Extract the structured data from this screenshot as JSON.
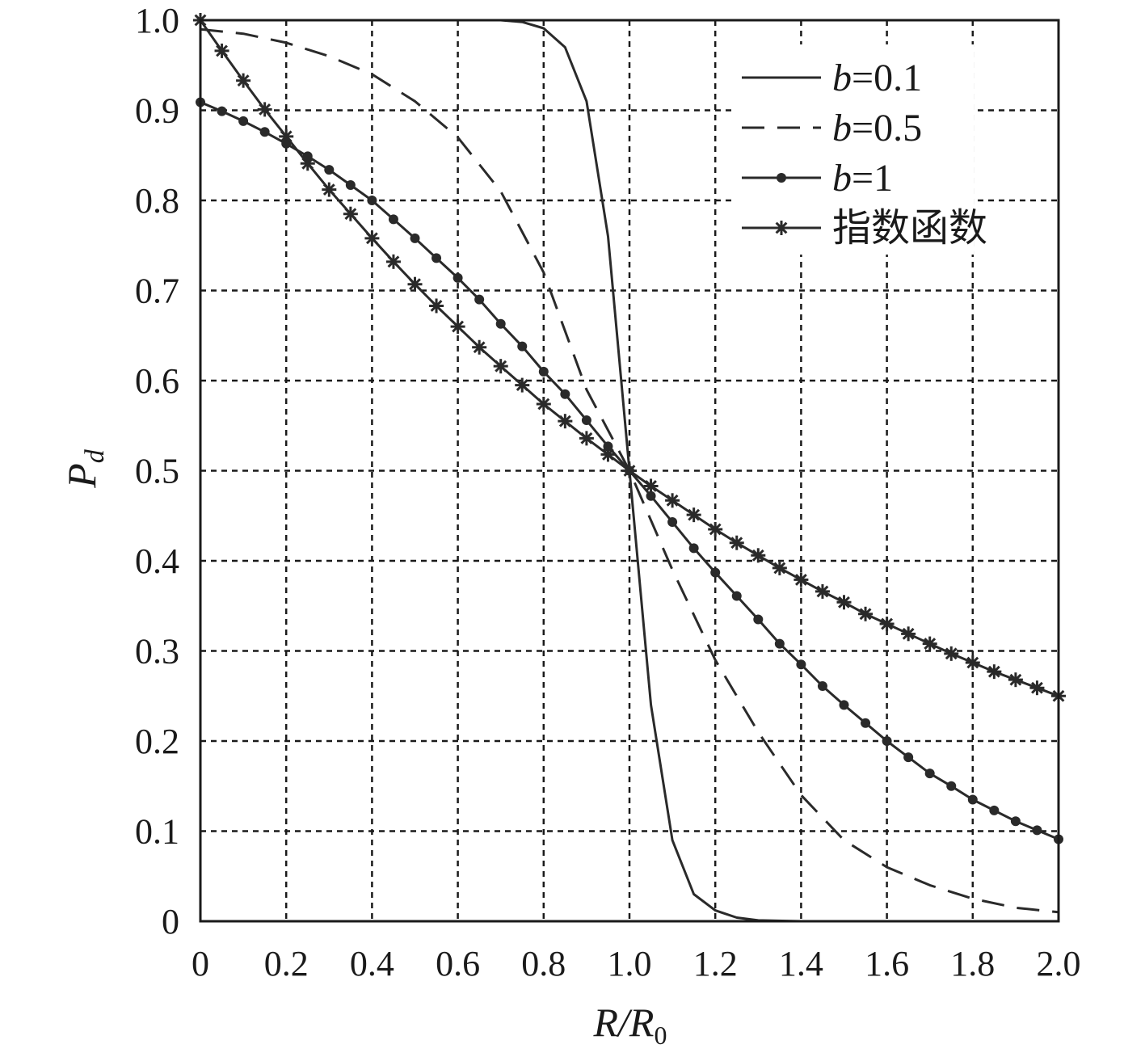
{
  "chart_data": {
    "type": "line",
    "xlabel": {
      "main": "R/R",
      "sub": "0"
    },
    "ylabel": {
      "main": "P",
      "sub": "d"
    },
    "xlim": [
      0,
      2.0
    ],
    "ylim": [
      0,
      1.0
    ],
    "x_ticks": [
      "0",
      "0.2",
      "0.4",
      "0.6",
      "0.8",
      "1.0",
      "1.2",
      "1.4",
      "1.6",
      "1.8",
      "2.0"
    ],
    "y_ticks": [
      "0",
      "0.1",
      "0.2",
      "0.3",
      "0.4",
      "0.5",
      "0.6",
      "0.7",
      "0.8",
      "0.9",
      "1.0"
    ],
    "grid": true,
    "legend_position": "top-right",
    "series": [
      {
        "name": "b=0.1",
        "legend_label": {
          "var": "b",
          "rest": "=0.1"
        },
        "style": "solid",
        "marker": "none",
        "x": [
          0,
          0.7,
          0.75,
          0.8,
          0.85,
          0.9,
          0.95,
          1.0,
          1.05,
          1.1,
          1.15,
          1.2,
          1.25,
          1.3,
          1.4,
          2.0
        ],
        "y": [
          1.0,
          1.0,
          0.998,
          0.991,
          0.97,
          0.91,
          0.76,
          0.5,
          0.24,
          0.09,
          0.03,
          0.012,
          0.004,
          0.001,
          0.0,
          0.0
        ]
      },
      {
        "name": "b=0.5",
        "legend_label": {
          "var": "b",
          "rest": "=0.5"
        },
        "style": "dashed",
        "marker": "none",
        "x": [
          0,
          0.1,
          0.2,
          0.3,
          0.4,
          0.5,
          0.6,
          0.7,
          0.8,
          0.9,
          1.0,
          1.1,
          1.2,
          1.3,
          1.4,
          1.5,
          1.6,
          1.7,
          1.8,
          1.9,
          2.0
        ],
        "y": [
          0.99,
          0.985,
          0.975,
          0.96,
          0.94,
          0.91,
          0.87,
          0.81,
          0.72,
          0.59,
          0.5,
          0.39,
          0.29,
          0.21,
          0.14,
          0.09,
          0.06,
          0.04,
          0.025,
          0.015,
          0.01
        ]
      },
      {
        "name": "b=1",
        "legend_label": {
          "var": "b",
          "rest": "=1"
        },
        "style": "solid",
        "marker": "dot",
        "x": [
          0,
          0.05,
          0.1,
          0.15,
          0.2,
          0.25,
          0.3,
          0.35,
          0.4,
          0.45,
          0.5,
          0.55,
          0.6,
          0.65,
          0.7,
          0.75,
          0.8,
          0.85,
          0.9,
          0.95,
          1.0,
          1.05,
          1.1,
          1.15,
          1.2,
          1.25,
          1.3,
          1.35,
          1.4,
          1.45,
          1.5,
          1.55,
          1.6,
          1.65,
          1.7,
          1.75,
          1.8,
          1.85,
          1.9,
          1.95,
          2.0
        ],
        "y": [
          0.909,
          0.899,
          0.888,
          0.876,
          0.863,
          0.849,
          0.834,
          0.817,
          0.8,
          0.779,
          0.758,
          0.736,
          0.714,
          0.69,
          0.663,
          0.638,
          0.61,
          0.585,
          0.556,
          0.527,
          0.5,
          0.472,
          0.443,
          0.414,
          0.387,
          0.361,
          0.335,
          0.308,
          0.285,
          0.261,
          0.24,
          0.22,
          0.2,
          0.182,
          0.164,
          0.15,
          0.135,
          0.123,
          0.111,
          0.101,
          0.091
        ]
      },
      {
        "name": "指数函数",
        "legend_label": {
          "var": "",
          "rest": "指数函数"
        },
        "style": "solid",
        "marker": "star",
        "x": [
          0,
          0.05,
          0.1,
          0.15,
          0.2,
          0.25,
          0.3,
          0.35,
          0.4,
          0.45,
          0.5,
          0.55,
          0.6,
          0.65,
          0.7,
          0.75,
          0.8,
          0.85,
          0.9,
          0.95,
          1.0,
          1.05,
          1.1,
          1.15,
          1.2,
          1.25,
          1.3,
          1.35,
          1.4,
          1.45,
          1.5,
          1.55,
          1.6,
          1.65,
          1.7,
          1.75,
          1.8,
          1.85,
          1.9,
          1.95,
          2.0
        ],
        "y": [
          1.0,
          0.966,
          0.933,
          0.901,
          0.871,
          0.841,
          0.812,
          0.785,
          0.758,
          0.732,
          0.707,
          0.683,
          0.66,
          0.637,
          0.616,
          0.595,
          0.574,
          0.555,
          0.536,
          0.518,
          0.5,
          0.483,
          0.467,
          0.451,
          0.435,
          0.42,
          0.406,
          0.392,
          0.379,
          0.366,
          0.354,
          0.341,
          0.33,
          0.319,
          0.308,
          0.297,
          0.287,
          0.277,
          0.268,
          0.259,
          0.25
        ]
      }
    ]
  }
}
